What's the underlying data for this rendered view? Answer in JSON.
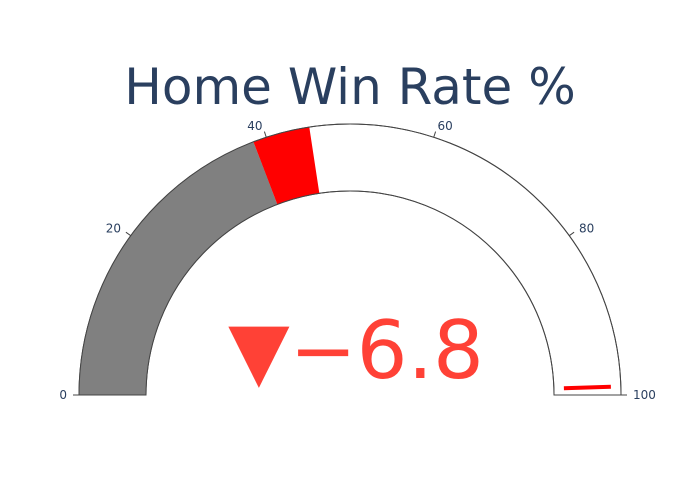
{
  "chart_data": {
    "type": "gauge",
    "title": "Home Win Rate %",
    "range": [
      0,
      100
    ],
    "ticks": [
      0,
      20,
      40,
      60,
      80,
      100
    ],
    "bar_value": 38.4,
    "steps": [
      {
        "range": [
          0,
          38.4
        ],
        "color": "#808080"
      },
      {
        "range": [
          38.4,
          45.2
        ],
        "color": "#ff0000"
      }
    ],
    "threshold": {
      "value": 99,
      "color": "#ff0000"
    },
    "delta": {
      "text": "▼−6.8",
      "value": -6.8,
      "color": "#ff4136"
    },
    "colors": {
      "text": "#2a3f5f",
      "background": "#ffffff",
      "outline": "#444444"
    }
  }
}
